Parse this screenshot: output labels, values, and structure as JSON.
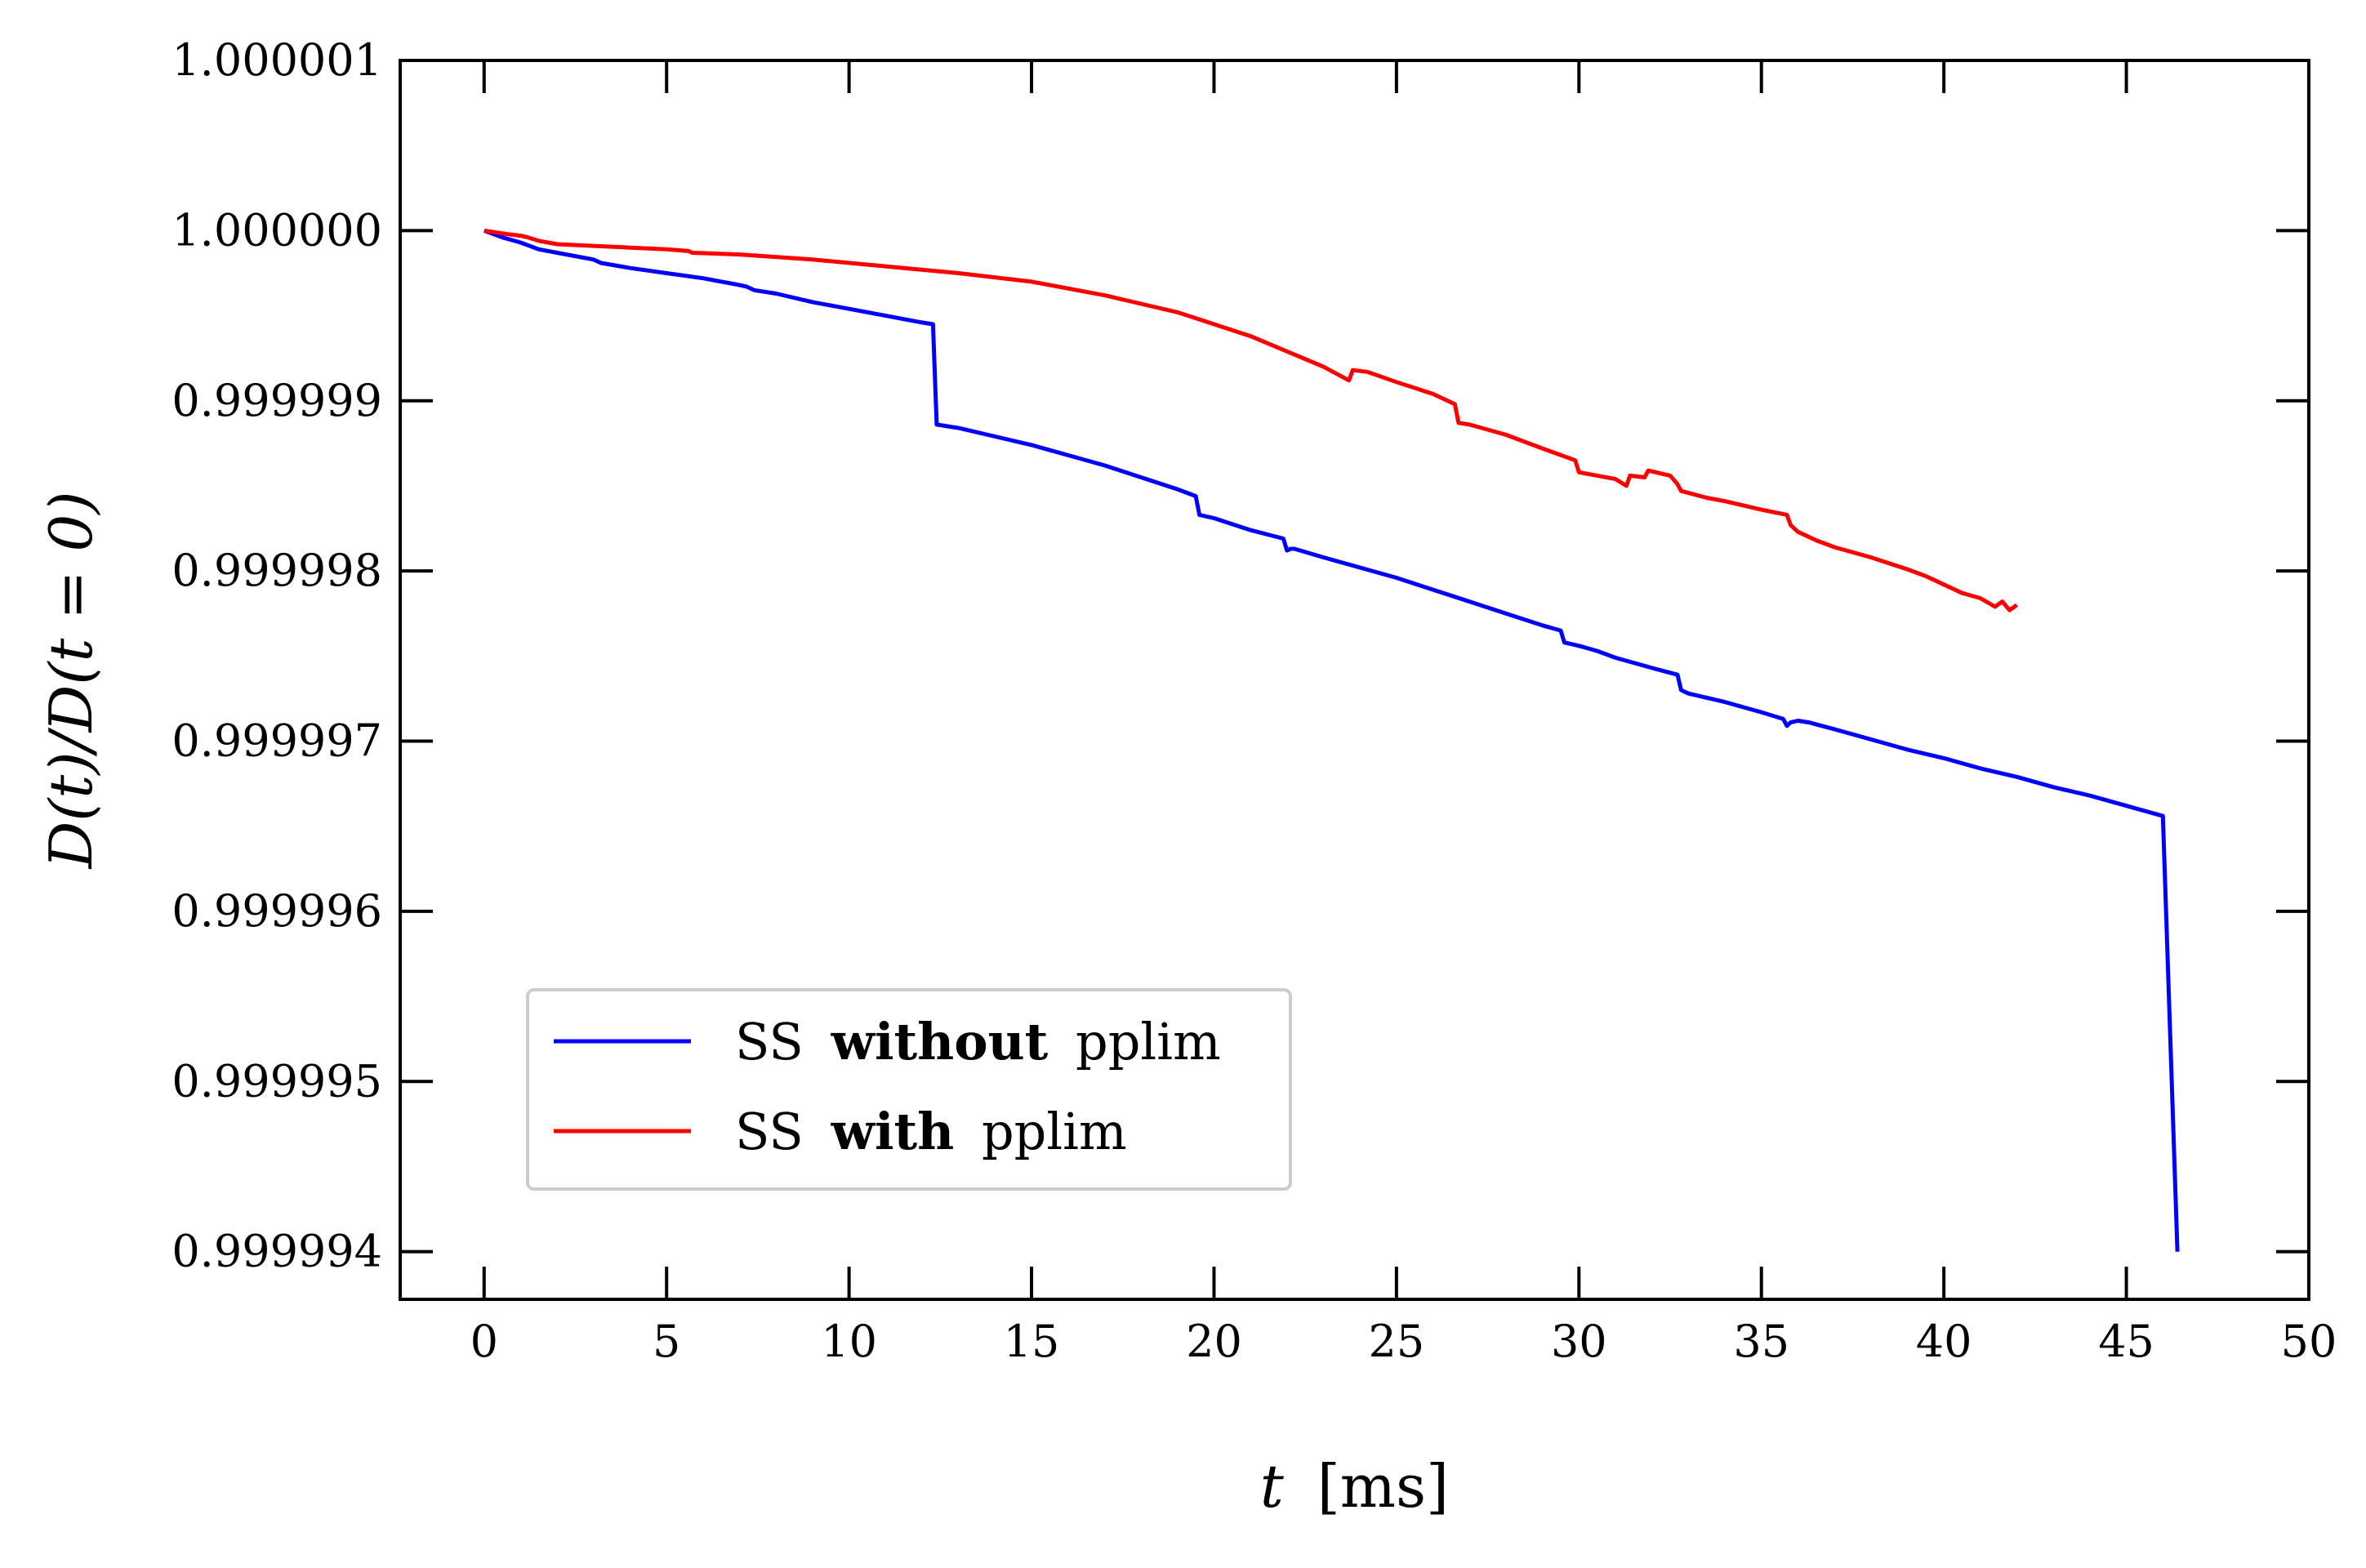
{
  "chart_data": {
    "type": "line",
    "xlabel_var": "t",
    "xlabel_unit": "[ms]",
    "ylabel": "D(t)/D(t = 0)",
    "xlim": [
      -2.3,
      50
    ],
    "ylim": [
      0.99999372,
      1.000001
    ],
    "x_ticks": [
      0,
      5,
      10,
      15,
      20,
      25,
      30,
      35,
      40,
      45,
      50
    ],
    "x_tick_labels": [
      "0",
      "5",
      "10",
      "15",
      "20",
      "25",
      "30",
      "35",
      "40",
      "45",
      "50"
    ],
    "y_ticks": [
      0.999994,
      0.999995,
      0.999996,
      0.999997,
      0.999998,
      0.999999,
      1.0,
      1.000001
    ],
    "y_tick_labels": [
      "0.999994",
      "0.999995",
      "0.999996",
      "0.999997",
      "0.999998",
      "0.999999",
      "1.000000",
      "1.000001"
    ],
    "grid": false,
    "legend_position": "lower-left",
    "series": [
      {
        "name_prefix": "SS",
        "name_bold": "without",
        "name_suffix": "pplim",
        "color": "#0000ff",
        "x": [
          0,
          0.5,
          1.0,
          1.5,
          2.0,
          3.0,
          3.2,
          4.0,
          5.0,
          6.0,
          7.0,
          7.2,
          7.4,
          8.0,
          9.0,
          10.0,
          11.0,
          12.0,
          12.3,
          12.4,
          13.0,
          14.0,
          15.0,
          16.0,
          17.0,
          18.0,
          19.0,
          19.5,
          19.6,
          20.0,
          21.0,
          21.9,
          22.0,
          22.1,
          22.2,
          23.0,
          24.0,
          25.0,
          26.0,
          27.0,
          28.0,
          29.0,
          29.5,
          29.6,
          30.0,
          30.5,
          31.0,
          32.0,
          32.7,
          32.8,
          33.0,
          34.0,
          35.0,
          35.6,
          35.7,
          35.8,
          36.0,
          36.3,
          37.0,
          38.0,
          39.0,
          40.0,
          41.0,
          42.0,
          43.0,
          44.0,
          45.0,
          46.0,
          46.4
        ],
        "y": [
          1.0,
          0.99999996,
          0.99999993,
          0.99999989,
          0.99999987,
          0.99999983,
          0.99999981,
          0.99999978,
          0.99999975,
          0.99999972,
          0.99999968,
          0.99999967,
          0.99999965,
          0.99999963,
          0.99999958,
          0.99999954,
          0.9999995,
          0.99999946,
          0.99999945,
          0.99999886,
          0.99999884,
          0.99999879,
          0.99999874,
          0.99999868,
          0.99999862,
          0.99999855,
          0.99999848,
          0.99999844,
          0.99999833,
          0.99999831,
          0.99999824,
          0.99999819,
          0.99999812,
          0.99999813,
          0.99999813,
          0.99999808,
          0.99999802,
          0.99999796,
          0.99999789,
          0.99999782,
          0.99999775,
          0.99999768,
          0.99999765,
          0.99999758,
          0.99999756,
          0.99999753,
          0.99999749,
          0.99999743,
          0.99999739,
          0.9999973,
          0.99999728,
          0.99999723,
          0.99999717,
          0.99999713,
          0.99999709,
          0.99999711,
          0.99999712,
          0.99999711,
          0.99999707,
          0.99999701,
          0.99999695,
          0.9999969,
          0.99999684,
          0.99999679,
          0.99999673,
          0.99999668,
          0.99999662,
          0.99999656,
          0.999994
        ]
      },
      {
        "name_prefix": "SS",
        "name_bold": "with",
        "name_suffix": "pplim",
        "color": "#ff0000",
        "x": [
          0,
          0.3,
          0.6,
          1.0,
          1.2,
          1.5,
          2.0,
          3.0,
          4.0,
          5.0,
          5.6,
          5.7,
          7.0,
          9.0,
          11.0,
          13.0,
          15.0,
          17.0,
          18.0,
          19.0,
          20.0,
          21.0,
          22.0,
          23.0,
          23.7,
          23.8,
          24.2,
          25.0,
          26.0,
          26.6,
          26.7,
          27.0,
          28.0,
          29.0,
          29.9,
          30.0,
          31.0,
          31.3,
          31.4,
          31.8,
          31.9,
          32.5,
          32.7,
          32.8,
          33.5,
          34.0,
          35.0,
          35.7,
          35.8,
          36.0,
          36.5,
          37.0,
          38.0,
          39.0,
          39.5,
          40.0,
          40.5,
          41.0,
          41.4,
          41.6,
          41.8,
          42.0
        ],
        "y": [
          1.0,
          0.99999999,
          0.99999998,
          0.99999997,
          0.99999996,
          0.99999994,
          0.99999992,
          0.99999991,
          0.9999999,
          0.99999989,
          0.99999988,
          0.99999987,
          0.99999986,
          0.99999983,
          0.99999979,
          0.99999975,
          0.9999997,
          0.99999962,
          0.99999957,
          0.99999952,
          0.99999945,
          0.99999938,
          0.99999929,
          0.9999992,
          0.99999912,
          0.99999918,
          0.99999917,
          0.99999911,
          0.99999904,
          0.99999898,
          0.99999887,
          0.99999886,
          0.9999988,
          0.99999872,
          0.99999865,
          0.99999858,
          0.99999854,
          0.9999985,
          0.99999856,
          0.99999855,
          0.99999859,
          0.99999856,
          0.99999851,
          0.99999847,
          0.99999843,
          0.99999841,
          0.99999836,
          0.99999833,
          0.99999827,
          0.99999823,
          0.99999818,
          0.99999814,
          0.99999808,
          0.99999801,
          0.99999797,
          0.99999792,
          0.99999787,
          0.99999784,
          0.99999779,
          0.99999782,
          0.99999777,
          0.9999978
        ]
      }
    ]
  }
}
